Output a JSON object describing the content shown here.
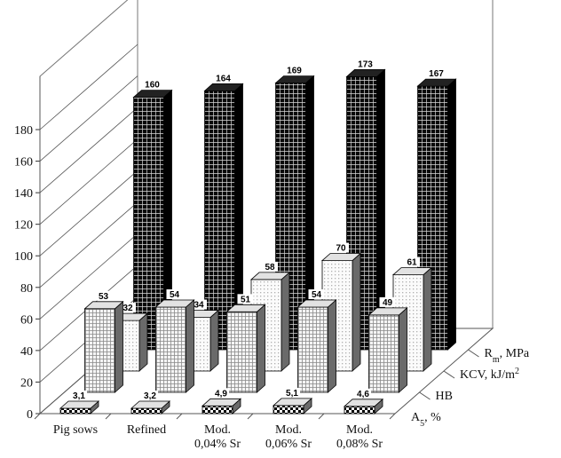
{
  "chart_data": {
    "type": "bar",
    "categories": [
      "Pig sows",
      "Refined",
      "Mod. 0,04% Sr",
      "Mod. 0,06% Sr",
      "Mod. 0,08% Sr"
    ],
    "category_lines": [
      [
        "Pig sows"
      ],
      [
        "Refined"
      ],
      [
        "Mod.",
        "0,04% Sr"
      ],
      [
        "Mod.",
        "0,06% Sr"
      ],
      [
        "Mod.",
        "0,08% Sr"
      ]
    ],
    "series": [
      {
        "name": "A5, %",
        "name_main": "A",
        "name_sub": "5",
        "name_tail": ", %",
        "values": [
          3.1,
          3.2,
          4.9,
          5.1,
          4.6
        ],
        "labels": [
          "3,1",
          "3,2",
          "4,9",
          "5,1",
          "4,6"
        ],
        "pattern": "checker"
      },
      {
        "name": "HB",
        "values": [
          53,
          54,
          51,
          54,
          49
        ],
        "labels": [
          "53",
          "54",
          "51",
          "54",
          "49"
        ],
        "pattern": "fine-grid"
      },
      {
        "name": "KCV, kJ/m2",
        "name_main": "KCV, kJ/m",
        "name_sup": "2",
        "values": [
          32,
          34,
          58,
          70,
          61
        ],
        "labels": [
          "32",
          "34",
          "58",
          "70",
          "61"
        ],
        "pattern": "dots"
      },
      {
        "name": "Rm, MPa",
        "name_main": "R",
        "name_sub": "m",
        "name_tail": ", MPa",
        "values": [
          160,
          164,
          169,
          173,
          167
        ],
        "labels": [
          "160",
          "164",
          "169",
          "173",
          "167"
        ],
        "pattern": "black-grid"
      }
    ],
    "y_ticks": [
      0,
      20,
      40,
      60,
      80,
      100,
      120,
      140,
      160,
      180
    ],
    "ylim": [
      0,
      180
    ],
    "grid": true,
    "legend": "series labels on depth axis at right",
    "title": "",
    "xlabel": "",
    "ylabel": ""
  }
}
